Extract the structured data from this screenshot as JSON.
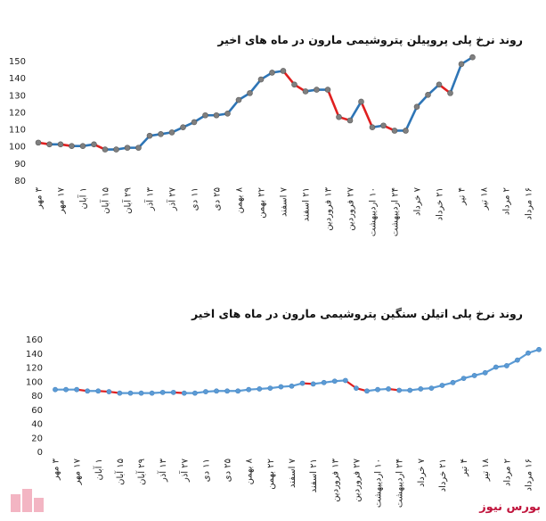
{
  "brand": {
    "text": "بورس نیوز"
  },
  "chart_data": [
    {
      "type": "line",
      "title": "روند نرخ پلی پروپیلن پتروشیمی مارون در ماه های اخیر",
      "ylim": [
        80,
        150
      ],
      "yticks": [
        80,
        90,
        100,
        110,
        120,
        130,
        140,
        150
      ],
      "xlabel": "",
      "ylabel": "",
      "grid": false,
      "colors": {
        "line": "#2e75b6",
        "down": "#e02020",
        "marker": "#7f7f7f"
      },
      "categories": [
        "۳ مهر",
        "۱۷ مهر",
        "۱ آبان",
        "۱۵ آبان",
        "۲۹ آبان",
        "۱۳ آذر",
        "۲۷ آذر",
        "۱۱ دی",
        "۲۵ دی",
        "۸ بهمن",
        "۲۲ بهمن",
        "۷ اسفند",
        "۲۱ اسفند",
        "۱۳ فروردین",
        "۲۷ فروردین",
        "۱۰ اردیبهشت",
        "۲۴ اردیبهشت",
        "۷ خرداد",
        "۲۱ خرداد",
        "۴ تیر",
        "۱۸ تیر",
        "۲ مرداد",
        "۱۶ مرداد"
      ],
      "x": [
        0,
        0.5,
        1,
        1.5,
        2,
        2.5,
        3,
        3.5,
        4,
        4.5,
        5,
        5.5,
        6,
        6.5,
        7,
        7.5,
        8,
        8.5,
        9,
        9.5,
        10,
        10.5,
        11,
        11.5,
        12,
        12.5,
        13,
        13.5,
        14,
        14.5,
        15,
        15.5,
        16,
        16.5,
        17,
        17.5,
        18,
        18.5,
        19,
        19.5
      ],
      "values": [
        102,
        101,
        101,
        100,
        100,
        101,
        98,
        98,
        99,
        99,
        106,
        107,
        108,
        111,
        114,
        118,
        118,
        119,
        127,
        131,
        139,
        143,
        144,
        136,
        132,
        133,
        133,
        117,
        115,
        126,
        111,
        112,
        109,
        109,
        123,
        130,
        136,
        131,
        148,
        152
      ]
    },
    {
      "type": "line",
      "title": "روند نرخ پلی اتیلن سنگین پتروشیمی مارون در ماه های اخیر",
      "ylim": [
        0,
        160
      ],
      "yticks": [
        0,
        20,
        40,
        60,
        80,
        100,
        120,
        140,
        160
      ],
      "xlabel": "",
      "ylabel": "",
      "grid": false,
      "colors": {
        "line": "#5b9bd5",
        "down": "#e02020",
        "marker": "#5b9bd5"
      },
      "categories": [
        "۳ مهر",
        "۱۷ مهر",
        "۱ آبان",
        "۱۵ آبان",
        "۲۹ آبان",
        "۱۳ آذر",
        "۲۷ آذر",
        "۱۱ دی",
        "۲۵ دی",
        "۸ بهمن",
        "۲۲ بهمن",
        "۷ اسفند",
        "۲۱ اسفند",
        "۱۳ فروردین",
        "۲۷ فروردین",
        "۱۰ اردیبهشت",
        "۲۴ اردیبهشت",
        "۷ خرداد",
        "۲۱ خرداد",
        "۴ تیر",
        "۱۸ تیر",
        "۲ مرداد",
        "۱۶ مرداد"
      ],
      "x": [
        0,
        0.5,
        1,
        1.5,
        2,
        2.5,
        3,
        3.5,
        4,
        4.5,
        5,
        5.5,
        6,
        6.5,
        7,
        7.5,
        8,
        8.5,
        9,
        9.5,
        10,
        10.5,
        11,
        11.5,
        12,
        12.5,
        13,
        13.5,
        14,
        14.5,
        15,
        15.5,
        16,
        16.5,
        17,
        17.5,
        18,
        18.5,
        19,
        19.5,
        20,
        20.5,
        21,
        21.5,
        22,
        22.5
      ],
      "values": [
        88,
        88,
        88,
        86,
        86,
        85,
        83,
        83,
        83,
        83,
        84,
        84,
        83,
        83,
        85,
        86,
        86,
        86,
        88,
        89,
        90,
        92,
        93,
        97,
        96,
        98,
        100,
        101,
        90,
        86,
        88,
        89,
        87,
        87,
        89,
        90,
        94,
        98,
        104,
        108,
        112,
        120,
        122,
        130,
        140,
        145
      ]
    }
  ]
}
